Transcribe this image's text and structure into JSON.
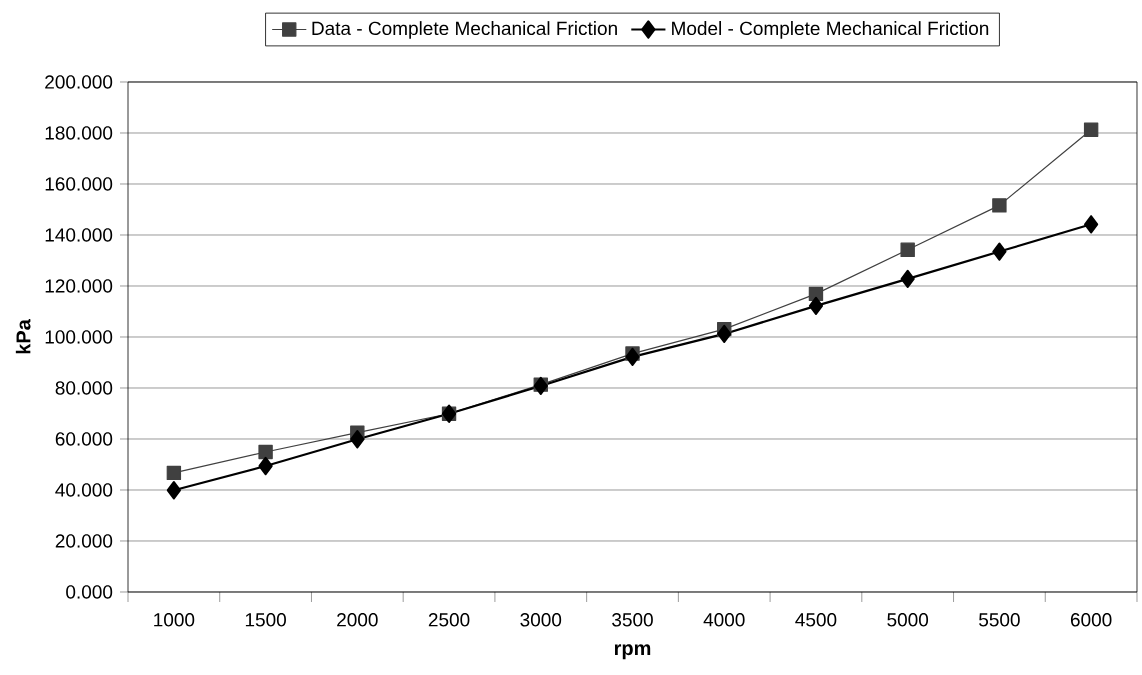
{
  "chart_data": {
    "type": "line",
    "xlabel": "rpm",
    "ylabel": "kPa",
    "categories": [
      "1000",
      "1500",
      "2000",
      "2500",
      "3000",
      "3500",
      "4000",
      "4500",
      "5000",
      "5500",
      "6000"
    ],
    "series": [
      {
        "name": "Data - Complete Mechanical Friction",
        "color": "#404040",
        "marker": "square",
        "values": [
          46.7,
          54.9,
          62.5,
          69.9,
          81.3,
          93.5,
          103.1,
          116.9,
          134.2,
          151.6,
          181.3
        ]
      },
      {
        "name": "Model - Complete Mechanical Friction",
        "color": "#000000",
        "marker": "diamond",
        "values": [
          39.9,
          49.4,
          59.9,
          69.9,
          80.8,
          92.2,
          101.2,
          112.2,
          122.8,
          133.5,
          144.2
        ]
      }
    ],
    "ylim": [
      0,
      200
    ],
    "yticks": [
      {
        "value": 0,
        "label": "0.000"
      },
      {
        "value": 20,
        "label": "20.000"
      },
      {
        "value": 40,
        "label": "40.000"
      },
      {
        "value": 60,
        "label": "60.000"
      },
      {
        "value": 80,
        "label": "80.000"
      },
      {
        "value": 100,
        "label": "100.000"
      },
      {
        "value": 120,
        "label": "120.000"
      },
      {
        "value": 140,
        "label": "140.000"
      },
      {
        "value": 160,
        "label": "160.000"
      },
      {
        "value": 180,
        "label": "180.000"
      },
      {
        "value": 200,
        "label": "200.000"
      }
    ],
    "grid": "y",
    "legend": "top",
    "line_style": "solid"
  }
}
